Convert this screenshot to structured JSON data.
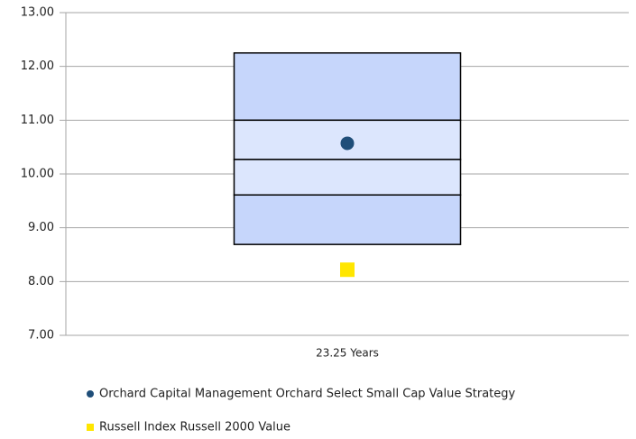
{
  "chart_data": {
    "type": "floating_box",
    "categories": [
      "23.25 Years"
    ],
    "boundaries": [
      12.25,
      11.0,
      10.27,
      9.61,
      8.69
    ],
    "band_colors": [
      "#c6d6fb",
      "#dce6fd",
      "#dce6fd",
      "#c6d6fb"
    ],
    "series": [
      {
        "name": "Orchard Capital Management Orchard Select Small Cap Value Strategy",
        "color": "#1f4e79",
        "marker": "circle",
        "values": [
          10.57
        ]
      },
      {
        "name": "Russell Index Russell 2000 Value",
        "color": "#ffe600",
        "marker": "square",
        "values": [
          8.22
        ]
      }
    ],
    "ylim": [
      7,
      13
    ],
    "yticks": [
      {
        "value": 7,
        "label": "7.00"
      },
      {
        "value": 8,
        "label": "8.00"
      },
      {
        "value": 9,
        "label": "9.00"
      },
      {
        "value": 10,
        "label": "10.00"
      },
      {
        "value": 11,
        "label": "11.00"
      },
      {
        "value": 12,
        "label": "12.00"
      },
      {
        "value": 13,
        "label": "13.00"
      }
    ],
    "grid": true
  }
}
